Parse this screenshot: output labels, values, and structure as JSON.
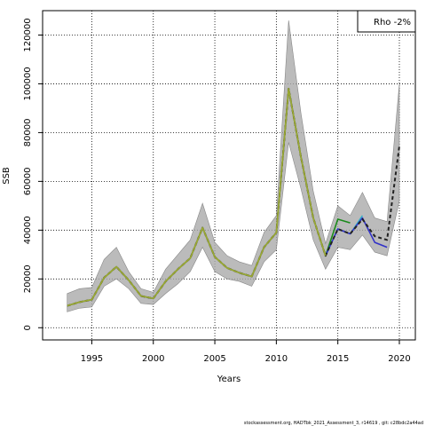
{
  "chart_data": {
    "type": "line",
    "xlabel": "Years",
    "ylabel": "SSB",
    "xlim": [
      1991,
      2021.3
    ],
    "ylim": [
      -5000,
      130000
    ],
    "xticks": [
      1995,
      2000,
      2005,
      2010,
      2015,
      2020
    ],
    "yticks": [
      0,
      20000,
      40000,
      60000,
      80000,
      100000,
      120000
    ],
    "grid": true,
    "legend": {
      "position": "top-right",
      "text": "Rho -2%"
    },
    "footer": "stockassessment.org, HADTbk_2021_Assessment_3, r14619 , git: c28bdc2a44ad",
    "confidence_band": {
      "x": [
        1993,
        1994,
        1995,
        1996,
        1997,
        1998,
        1999,
        2000,
        2001,
        2002,
        2003,
        2004,
        2005,
        2006,
        2007,
        2008,
        2009,
        2010,
        2011,
        2012,
        2013,
        2014,
        2015,
        2016,
        2017,
        2018,
        2019,
        2020
      ],
      "lower": [
        6500,
        8000,
        8500,
        17000,
        20000,
        16000,
        10000,
        9500,
        14000,
        18000,
        23000,
        33000,
        23000,
        20000,
        19000,
        17000,
        27000,
        32000,
        76000,
        57000,
        36000,
        24000,
        33000,
        32000,
        38000,
        31000,
        29500,
        52000
      ],
      "upper": [
        14000,
        16000,
        16500,
        28000,
        33000,
        23000,
        16000,
        14500,
        24000,
        30000,
        36000,
        51000,
        35000,
        29500,
        27000,
        25500,
        39000,
        46000,
        126000,
        88000,
        56000,
        34500,
        50000,
        46000,
        55500,
        45000,
        43500,
        100000
      ]
    },
    "series": [
      {
        "color": "#1a8a1a",
        "x": [
          1993,
          1994,
          1995,
          1996,
          1997,
          1998,
          1999,
          2000,
          2001,
          2002,
          2003,
          2004,
          2005,
          2006,
          2007,
          2008,
          2009,
          2010,
          2011,
          2012,
          2013,
          2014,
          2015,
          2016
        ],
        "values": [
          9000,
          10500,
          11500,
          20500,
          25000,
          19500,
          13000,
          12000,
          19000,
          24000,
          28500,
          41000,
          29000,
          24500,
          22500,
          21000,
          33000,
          39000,
          98000,
          70000,
          45000,
          29500,
          44500,
          43000
        ],
        "dash": false,
        "width": 1.6
      },
      {
        "color": "#2db0c8",
        "x": [
          1993,
          1994,
          1995,
          1996,
          1997,
          1998,
          1999,
          2000,
          2001,
          2002,
          2003,
          2004,
          2005,
          2006,
          2007,
          2008,
          2009,
          2010,
          2011,
          2012,
          2013,
          2014,
          2015,
          2016,
          2017
        ],
        "values": [
          9000,
          10500,
          11500,
          20500,
          25000,
          19500,
          13000,
          12000,
          19000,
          24000,
          28500,
          41000,
          29000,
          24500,
          22500,
          21000,
          33000,
          39000,
          98000,
          70000,
          45000,
          29500,
          40500,
          38500,
          46000
        ],
        "dash": false,
        "width": 1.4
      },
      {
        "color": "#3232c8",
        "x": [
          1993,
          1994,
          1995,
          1996,
          1997,
          1998,
          1999,
          2000,
          2001,
          2002,
          2003,
          2004,
          2005,
          2006,
          2007,
          2008,
          2009,
          2010,
          2011,
          2012,
          2013,
          2014,
          2015,
          2016,
          2017,
          2018,
          2019
        ],
        "values": [
          9000,
          10500,
          11500,
          20500,
          25000,
          19500,
          13000,
          12000,
          19000,
          24000,
          28500,
          41000,
          29000,
          24500,
          22500,
          21000,
          33000,
          39000,
          98000,
          70000,
          45000,
          29500,
          40500,
          38500,
          45000,
          35000,
          33000
        ],
        "dash": false,
        "width": 1.6
      },
      {
        "color": "#222222",
        "x": [
          1993,
          1994,
          1995,
          1996,
          1997,
          1998,
          1999,
          2000,
          2001,
          2002,
          2003,
          2004,
          2005,
          2006,
          2007,
          2008,
          2009,
          2010,
          2011,
          2012,
          2013,
          2014,
          2015,
          2016,
          2017,
          2018,
          2019,
          2020
        ],
        "values": [
          9000,
          10500,
          11500,
          20500,
          25000,
          19500,
          13000,
          12000,
          19000,
          24000,
          28500,
          41000,
          29000,
          24500,
          22500,
          21000,
          33000,
          39000,
          98000,
          70000,
          45000,
          29500,
          40500,
          38500,
          44500,
          37500,
          36000,
          74500
        ],
        "dash": true,
        "width": 2.0
      },
      {
        "color": "#9aa832",
        "x": [
          1993,
          1994,
          1995,
          1996,
          1997,
          1998,
          1999,
          2000,
          2001,
          2002,
          2003,
          2004,
          2005,
          2006,
          2007,
          2008,
          2009,
          2010,
          2011,
          2012,
          2013,
          2014
        ],
        "values": [
          9000,
          10500,
          11500,
          20500,
          25000,
          19500,
          13000,
          12000,
          19000,
          24000,
          28500,
          41000,
          29000,
          24500,
          22500,
          21000,
          33000,
          39000,
          98000,
          70000,
          45000,
          29500
        ],
        "dash": false,
        "width": 1.8
      }
    ]
  }
}
